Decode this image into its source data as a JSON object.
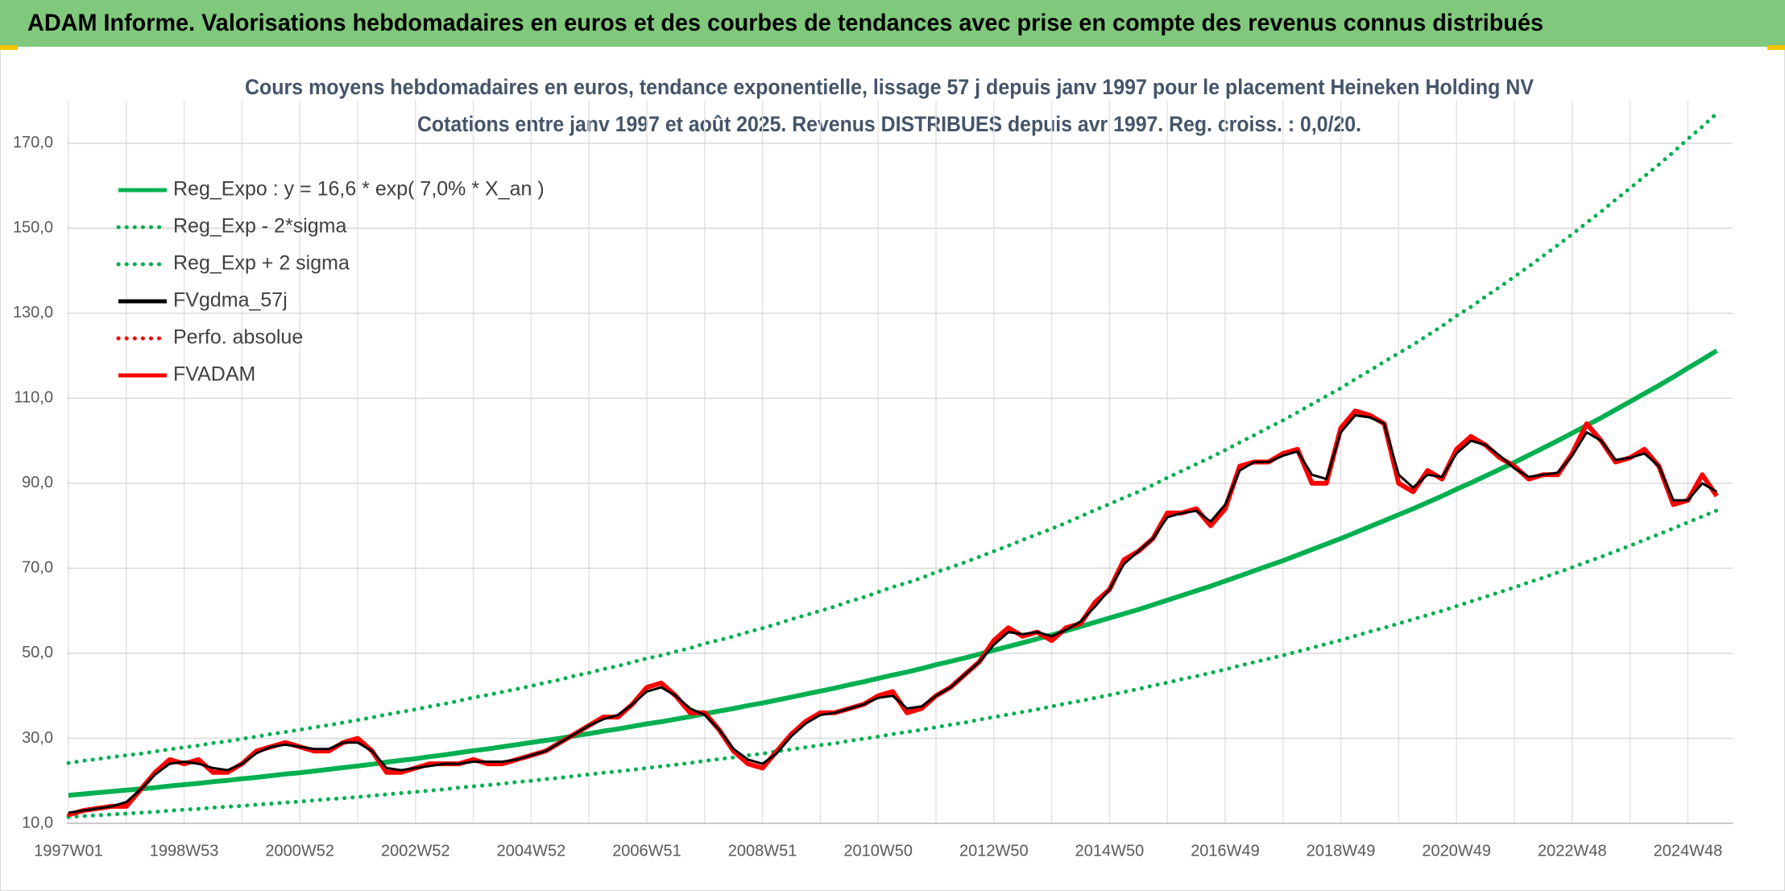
{
  "header": {
    "title": "ADAM Informe. Valorisations hebdomadaires en euros et des courbes de tendances avec prise en compte des revenus connus distribués"
  },
  "chart_data": {
    "type": "line",
    "title": "Cours moyens hebdomadaires en euros, tendance exponentielle, lissage 57 j depuis janv 1997 pour le placement Heineken Holding NV",
    "subtitle": "Cotations entre janv 1997 et août 2025. Revenus DISTRIBUES depuis avr 1997. Reg. croiss. : 0,0/20.",
    "categories": [
      "1997W01",
      null,
      null,
      null,
      null,
      null,
      null,
      null,
      "1998W53",
      null,
      null,
      null,
      null,
      null,
      null,
      null,
      "2000W52",
      null,
      null,
      null,
      null,
      null,
      null,
      null,
      "2002W52",
      null,
      null,
      null,
      null,
      null,
      null,
      null,
      "2004W52",
      null,
      null,
      null,
      null,
      null,
      null,
      null,
      "2006W51",
      null,
      null,
      null,
      null,
      null,
      null,
      null,
      "2008W51",
      null,
      null,
      null,
      null,
      null,
      null,
      null,
      "2010W50",
      null,
      null,
      null,
      null,
      null,
      null,
      null,
      "2012W50",
      null,
      null,
      null,
      null,
      null,
      null,
      null,
      "2014W50",
      null,
      null,
      null,
      null,
      null,
      null,
      null,
      "2016W49",
      null,
      null,
      null,
      null,
      null,
      null,
      null,
      "2018W49",
      null,
      null,
      null,
      null,
      null,
      null,
      null,
      "2020W49",
      null,
      null,
      null,
      null,
      null,
      null,
      null,
      "2022W48",
      null,
      null,
      null,
      null,
      null,
      null,
      null,
      "2024W48",
      null,
      null
    ],
    "ylim": [
      10,
      180
    ],
    "yticks": [
      {
        "value": 10,
        "label": "10,0"
      },
      {
        "value": 30,
        "label": "30,0"
      },
      {
        "value": 50,
        "label": "50,0"
      },
      {
        "value": 70,
        "label": "70,0"
      },
      {
        "value": 90,
        "label": "90,0"
      },
      {
        "value": 110,
        "label": "110,0"
      },
      {
        "value": 130,
        "label": "130,0"
      },
      {
        "value": 150,
        "label": "150,0"
      },
      {
        "value": 170,
        "label": "170,0"
      }
    ],
    "grid": true,
    "series": [
      {
        "name": "Reg_Expo : y = 16,6 * exp( 7,0% *  X_an )",
        "color": "#00b050",
        "dash": "solid",
        "values": [
          16.6,
          16.9,
          17.2,
          17.5,
          17.8,
          18.1,
          18.4,
          18.8,
          19.1,
          19.4,
          19.8,
          20.1,
          20.5,
          20.8,
          21.2,
          21.6,
          21.9,
          22.3,
          22.7,
          23.1,
          23.5,
          23.9,
          24.4,
          24.8,
          25.2,
          25.7,
          26.1,
          26.6,
          27.1,
          27.5,
          28.0,
          28.5,
          29.0,
          29.5,
          30.0,
          30.6,
          31.1,
          31.7,
          32.2,
          32.8,
          33.4,
          33.9,
          34.5,
          35.1,
          35.8,
          36.4,
          37.0,
          37.7,
          38.3,
          39.0,
          39.7,
          40.4,
          41.1,
          41.8,
          42.6,
          43.3,
          44.1,
          44.9,
          45.6,
          46.4,
          47.3,
          48.1,
          48.9,
          49.8,
          50.7,
          51.6,
          52.5,
          53.4,
          54.3,
          55.3,
          56.3,
          57.3,
          58.3,
          59.3,
          60.3,
          61.4,
          62.5,
          63.6,
          64.7,
          65.8,
          67.0,
          68.2,
          69.4,
          70.6,
          71.8,
          73.1,
          74.4,
          75.7,
          77.0,
          78.4,
          79.8,
          81.2,
          82.6,
          84.0,
          85.5,
          87.0,
          88.6,
          90.1,
          91.7,
          93.3,
          94.9,
          96.6,
          98.3,
          100.0,
          101.8,
          103.6,
          105.4,
          107.3,
          109.2,
          111.1,
          113.0,
          115.0,
          117.1,
          119.1,
          121.2
        ]
      },
      {
        "name": "Reg_Exp - 2*sigma",
        "color": "#00b050",
        "dash": "dotted",
        "values": [
          11.5,
          11.7,
          11.9,
          12.1,
          12.3,
          12.5,
          12.7,
          13.0,
          13.2,
          13.4,
          13.7,
          13.9,
          14.1,
          14.4,
          14.6,
          14.9,
          15.1,
          15.4,
          15.7,
          15.9,
          16.2,
          16.5,
          16.8,
          17.1,
          17.4,
          17.7,
          18.0,
          18.4,
          18.7,
          19.0,
          19.3,
          19.7,
          20.0,
          20.4,
          20.7,
          21.1,
          21.5,
          21.9,
          22.2,
          22.6,
          23.0,
          23.4,
          23.8,
          24.2,
          24.7,
          25.1,
          25.5,
          26.0,
          26.4,
          26.9,
          27.4,
          27.9,
          28.4,
          28.8,
          29.4,
          29.9,
          30.4,
          31.0,
          31.5,
          32.0,
          32.6,
          33.2,
          33.7,
          34.4,
          35.0,
          35.6,
          36.2,
          36.8,
          37.5,
          38.2,
          38.8,
          39.5,
          40.2,
          40.9,
          41.6,
          42.4,
          43.1,
          43.9,
          44.6,
          45.4,
          46.2,
          47.1,
          47.9,
          48.7,
          49.5,
          50.4,
          51.3,
          52.2,
          53.1,
          54.1,
          55.1,
          56.0,
          57.0,
          58.0,
          59.0,
          60.0,
          61.1,
          62.2,
          63.3,
          64.4,
          65.5,
          66.7,
          67.8,
          69.0,
          70.2,
          71.5,
          72.7,
          74.0,
          75.3,
          76.7,
          78.0,
          79.4,
          80.8,
          82.2,
          83.6
        ]
      },
      {
        "name": "Reg_Exp + 2 sigma",
        "color": "#00b050",
        "dash": "dotted",
        "values": [
          24.2,
          24.7,
          25.1,
          25.6,
          26.0,
          26.4,
          26.9,
          27.4,
          27.9,
          28.3,
          28.9,
          29.3,
          29.9,
          30.4,
          31.0,
          31.5,
          32.0,
          32.6,
          33.1,
          33.7,
          34.3,
          34.9,
          35.6,
          36.2,
          36.8,
          37.5,
          38.1,
          38.8,
          39.6,
          40.2,
          40.9,
          41.6,
          42.3,
          43.1,
          43.8,
          44.7,
          45.4,
          46.3,
          47.0,
          47.9,
          48.8,
          49.5,
          50.4,
          51.2,
          52.3,
          53.1,
          54.0,
          55.0,
          55.9,
          56.9,
          58.0,
          59.0,
          60.0,
          61.0,
          62.2,
          63.2,
          64.4,
          65.6,
          66.6,
          67.7,
          69.1,
          70.2,
          71.4,
          72.7,
          74.0,
          75.3,
          76.7,
          78.0,
          79.3,
          80.7,
          82.2,
          83.7,
          85.1,
          86.6,
          88.0,
          89.6,
          91.3,
          92.9,
          94.5,
          96.1,
          97.8,
          99.6,
          101.3,
          103.1,
          104.8,
          106.7,
          108.6,
          110.5,
          112.4,
          114.5,
          116.5,
          118.6,
          120.6,
          122.6,
          124.8,
          127.0,
          129.4,
          131.5,
          133.9,
          136.2,
          138.6,
          141.0,
          143.5,
          146.0,
          148.6,
          151.3,
          153.9,
          156.7,
          159.4,
          162.2,
          165.0,
          167.9,
          171.0,
          173.9,
          177.0
        ]
      },
      {
        "name": "FVgdma_57j",
        "color": "#000000",
        "dash": "solid",
        "values": [
          12.5,
          13,
          13.5,
          14,
          15,
          18,
          21.5,
          24,
          24.5,
          24,
          23,
          22.5,
          24,
          26.5,
          28,
          28.5,
          28,
          27.5,
          27.5,
          29,
          29,
          27,
          23,
          22.5,
          23,
          23.5,
          24,
          24,
          24.5,
          24.5,
          24.5,
          25,
          26,
          27,
          29,
          31,
          33,
          34.5,
          35.5,
          38,
          41,
          42,
          40,
          37,
          35.5,
          32,
          27.5,
          25,
          24,
          26.5,
          30.5,
          33.5,
          35.5,
          36,
          37,
          38,
          39.5,
          40,
          37,
          37.5,
          40,
          42,
          45,
          48,
          52,
          55,
          54.5,
          55,
          54,
          55.5,
          57.5,
          61,
          65,
          71,
          74,
          77,
          82,
          83,
          83.5,
          81,
          85,
          93,
          95,
          95,
          96.5,
          97.5,
          92,
          91,
          102,
          106,
          105.5,
          104,
          92,
          89,
          92,
          91.5,
          97,
          100,
          99,
          96.5,
          93.5,
          91.5,
          92,
          92.5,
          96.5,
          102,
          100,
          95.5,
          96,
          97,
          94,
          86,
          86,
          90,
          88
        ]
      },
      {
        "name": "Perfo. absolue",
        "color": "#ff0000",
        "dash": "dotted",
        "values": [
          12,
          13,
          13.5,
          14,
          14,
          18,
          22,
          25,
          24,
          25,
          22,
          22,
          24,
          27,
          28,
          29,
          28,
          27,
          27,
          29,
          30,
          27,
          22,
          22,
          23,
          24,
          24,
          24,
          25,
          24,
          24,
          25,
          26,
          27,
          29,
          31,
          33,
          35,
          35,
          38,
          42,
          43,
          40,
          36,
          36,
          32,
          27,
          24,
          23,
          27,
          31,
          34,
          36,
          36,
          37,
          38,
          40,
          41,
          36,
          37,
          40,
          42,
          45,
          48,
          53,
          56,
          54,
          55,
          53,
          56,
          57,
          62,
          65,
          72,
          74,
          77,
          83,
          83,
          84,
          80,
          84,
          94,
          95,
          95,
          97,
          98,
          90,
          90,
          103,
          107,
          106,
          104,
          90,
          88,
          93,
          91,
          98,
          101,
          99,
          96,
          94,
          91,
          92,
          92,
          97,
          104,
          100,
          95,
          96,
          98,
          94,
          85,
          86,
          92,
          87
        ]
      },
      {
        "name": "FVADAM",
        "color": "#ff0000",
        "dash": "solid",
        "values": [
          12,
          13,
          13.5,
          14,
          14,
          18,
          22,
          25,
          24,
          25,
          22,
          22,
          24,
          27,
          28,
          29,
          28,
          27,
          27,
          29,
          30,
          27,
          22,
          22,
          23,
          24,
          24,
          24,
          25,
          24,
          24,
          25,
          26,
          27,
          29,
          31,
          33,
          35,
          35,
          38,
          42,
          43,
          40,
          36,
          36,
          32,
          27,
          24,
          23,
          27,
          31,
          34,
          36,
          36,
          37,
          38,
          40,
          41,
          36,
          37,
          40,
          42,
          45,
          48,
          53,
          56,
          54,
          55,
          53,
          56,
          57,
          62,
          65,
          72,
          74,
          77,
          83,
          83,
          84,
          80,
          84,
          94,
          95,
          95,
          97,
          98,
          90,
          90,
          103,
          107,
          106,
          104,
          90,
          88,
          93,
          91,
          98,
          101,
          99,
          96,
          94,
          91,
          92,
          92,
          97,
          104,
          100,
          95,
          96,
          98,
          94,
          85,
          86,
          92,
          87
        ]
      }
    ]
  }
}
